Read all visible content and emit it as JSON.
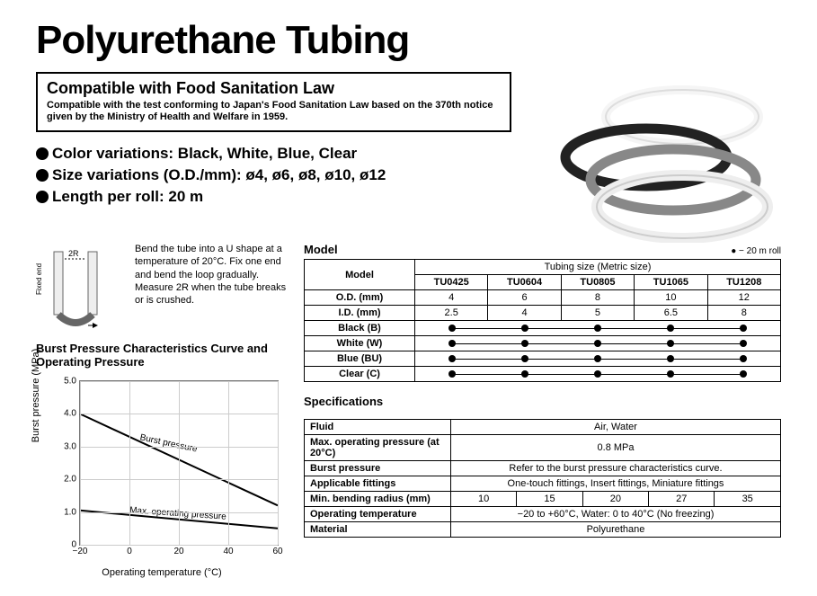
{
  "title": "Polyurethane Tubing",
  "compat": {
    "title": "Compatible with Food Sanitation Law",
    "body": "Compatible with the test conforming to Japan's Food Sanitation Law based on the 370th notice given by the Ministry of Health and Welfare in 1959."
  },
  "bullets": {
    "b1": "Color variations: Black, White, Blue, Clear",
    "b2": "Size variations (O.D./mm): ø4, ø6, ø8, ø10, ø12",
    "b3": "Length per roll: 20 m"
  },
  "bend": {
    "label_2r": "2R",
    "label_fixed": "Fixed end",
    "text": "Bend the tube into a U shape at a temperature of 20°C. Fix one end and bend the loop gradually. Measure 2R when the tube breaks or is crushed."
  },
  "burst_chart": {
    "title": "Burst Pressure Characteristics Curve and Operating Pressure",
    "y_label": "Burst pressure (MPa)",
    "x_label": "Operating temperature (°C)",
    "y_ticks": [
      "0",
      "1.0",
      "2.0",
      "3.0",
      "4.0",
      "5.0"
    ],
    "x_ticks": [
      "−20",
      "0",
      "20",
      "40",
      "60"
    ],
    "ylim": [
      0,
      5.0
    ],
    "xlim": [
      -20,
      60
    ],
    "lines": {
      "burst": {
        "label": "Burst pressure",
        "points": [
          [
            -20,
            4.0
          ],
          [
            60,
            1.2
          ]
        ],
        "color": "#000",
        "width": 2
      },
      "maxop": {
        "label": "Max. operating pressure",
        "points": [
          [
            -20,
            1.05
          ],
          [
            60,
            0.5
          ]
        ],
        "color": "#000",
        "width": 2
      }
    },
    "grid_color": "#ccc",
    "bg": "#fff"
  },
  "model_section": {
    "header": "Model",
    "roll_note": "− 20 m roll",
    "group_header": "Tubing size (Metric size)",
    "row_labels": {
      "model": "Model",
      "od": "O.D. (mm)",
      "id": "I.D. (mm)",
      "black": "Black (B)",
      "white": "White (W)",
      "blue": "Blue (BU)",
      "clear": "Clear (C)"
    },
    "models": [
      "TU0425",
      "TU0604",
      "TU0805",
      "TU1065",
      "TU1208"
    ],
    "od": [
      "4",
      "6",
      "8",
      "10",
      "12"
    ],
    "id": [
      "2.5",
      "4",
      "5",
      "6.5",
      "8"
    ]
  },
  "spec_section": {
    "header": "Specifications",
    "rows": {
      "fluid": {
        "label": "Fluid",
        "value": "Air, Water"
      },
      "maxop": {
        "label": "Max. operating pressure (at 20°C)",
        "value": "0.8 MPa"
      },
      "burst": {
        "label": "Burst pressure",
        "value": "Refer to the burst pressure characteristics curve."
      },
      "fittings": {
        "label": "Applicable fittings",
        "value": "One-touch fittings, Insert fittings, Miniature fittings"
      },
      "bend": {
        "label": "Min. bending radius (mm)",
        "values": [
          "10",
          "15",
          "20",
          "27",
          "35"
        ]
      },
      "optemp": {
        "label": "Operating temperature",
        "value": "−20 to +60°C, Water: 0 to 40°C (No freezing)"
      },
      "material": {
        "label": "Material",
        "value": "Polyurethane"
      }
    }
  }
}
